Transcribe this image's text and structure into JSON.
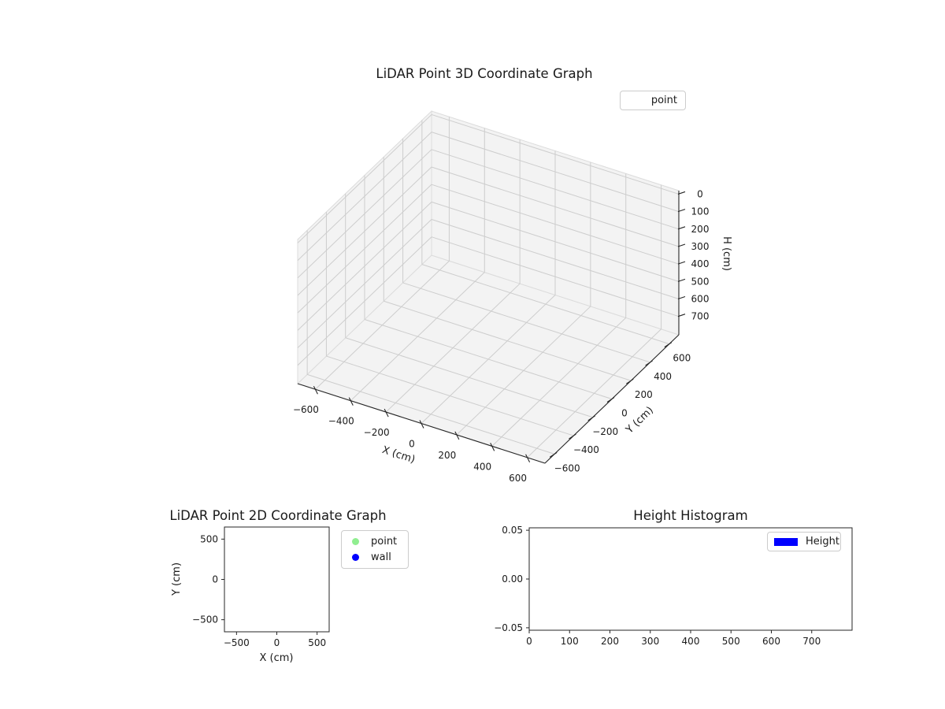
{
  "figure": {
    "background": "#ffffff",
    "text_color": "#1a1a1a",
    "grid_color": "#cdcdcd",
    "pane_color": "#f3f3f3"
  },
  "chart_data": [
    {
      "id": "lidar-3d",
      "type": "scatter",
      "projection": "3d",
      "title": "LiDAR Point 3D Coordinate Graph",
      "xlabel": "X (cm)",
      "ylabel": "Y (cm)",
      "zlabel": "H (cm)",
      "xlim": [
        -700,
        700
      ],
      "ylim": [
        -700,
        700
      ],
      "zlim": [
        -20,
        805
      ],
      "zaxis_inverted": true,
      "grid": true,
      "xticks": [
        -600,
        -400,
        -200,
        0,
        200,
        400,
        600
      ],
      "xtick_labels": [
        "−600",
        "−400",
        "−200",
        "0",
        "200",
        "400",
        "600"
      ],
      "yticks": [
        -600,
        -400,
        -200,
        0,
        200,
        400,
        600
      ],
      "ytick_labels": [
        "−600",
        "−400",
        "−200",
        "0",
        "200",
        "400",
        "600"
      ],
      "zticks": [
        0,
        100,
        200,
        300,
        400,
        500,
        600,
        700
      ],
      "ztick_labels": [
        "0",
        "100",
        "200",
        "300",
        "400",
        "500",
        "600",
        "700"
      ],
      "legend": {
        "position": "upper right",
        "entries": [
          {
            "label": "point",
            "marker": "none",
            "color": "none"
          }
        ]
      },
      "series": [
        {
          "name": "point",
          "points": []
        }
      ]
    },
    {
      "id": "lidar-2d",
      "type": "scatter",
      "title": "LiDAR Point 2D Coordinate Graph",
      "xlabel": "X (cm)",
      "ylabel": "Y (cm)",
      "xlim": [
        -650,
        650
      ],
      "ylim": [
        -650,
        650
      ],
      "grid": false,
      "xticks": [
        -500,
        0,
        500
      ],
      "xtick_labels": [
        "−500",
        "0",
        "500"
      ],
      "yticks": [
        500,
        0,
        -500
      ],
      "ytick_labels": [
        "500",
        "0",
        "−500"
      ],
      "legend": {
        "position": "outside upper right",
        "entries": [
          {
            "label": "point",
            "marker": "circle",
            "color": "#90ee90"
          },
          {
            "label": "wall",
            "marker": "circle",
            "color": "#0000ff"
          }
        ]
      },
      "series": [
        {
          "name": "point",
          "points": []
        },
        {
          "name": "wall",
          "points": []
        }
      ]
    },
    {
      "id": "height-histogram",
      "type": "bar",
      "title": "Height Histogram",
      "xlabel": "",
      "ylabel": "",
      "xlim": [
        0,
        800
      ],
      "ylim": [
        -0.0525,
        0.0525
      ],
      "grid": false,
      "xticks": [
        0,
        100,
        200,
        300,
        400,
        500,
        600,
        700
      ],
      "xtick_labels": [
        "0",
        "100",
        "200",
        "300",
        "400",
        "500",
        "600",
        "700"
      ],
      "yticks": [
        0.05,
        0.0,
        -0.05
      ],
      "ytick_labels": [
        "0.05",
        "0.00",
        "−0.05"
      ],
      "legend": {
        "position": "upper right",
        "entries": [
          {
            "label": "Height",
            "marker": "rect",
            "color": "#0000ff"
          }
        ]
      },
      "values": []
    }
  ]
}
